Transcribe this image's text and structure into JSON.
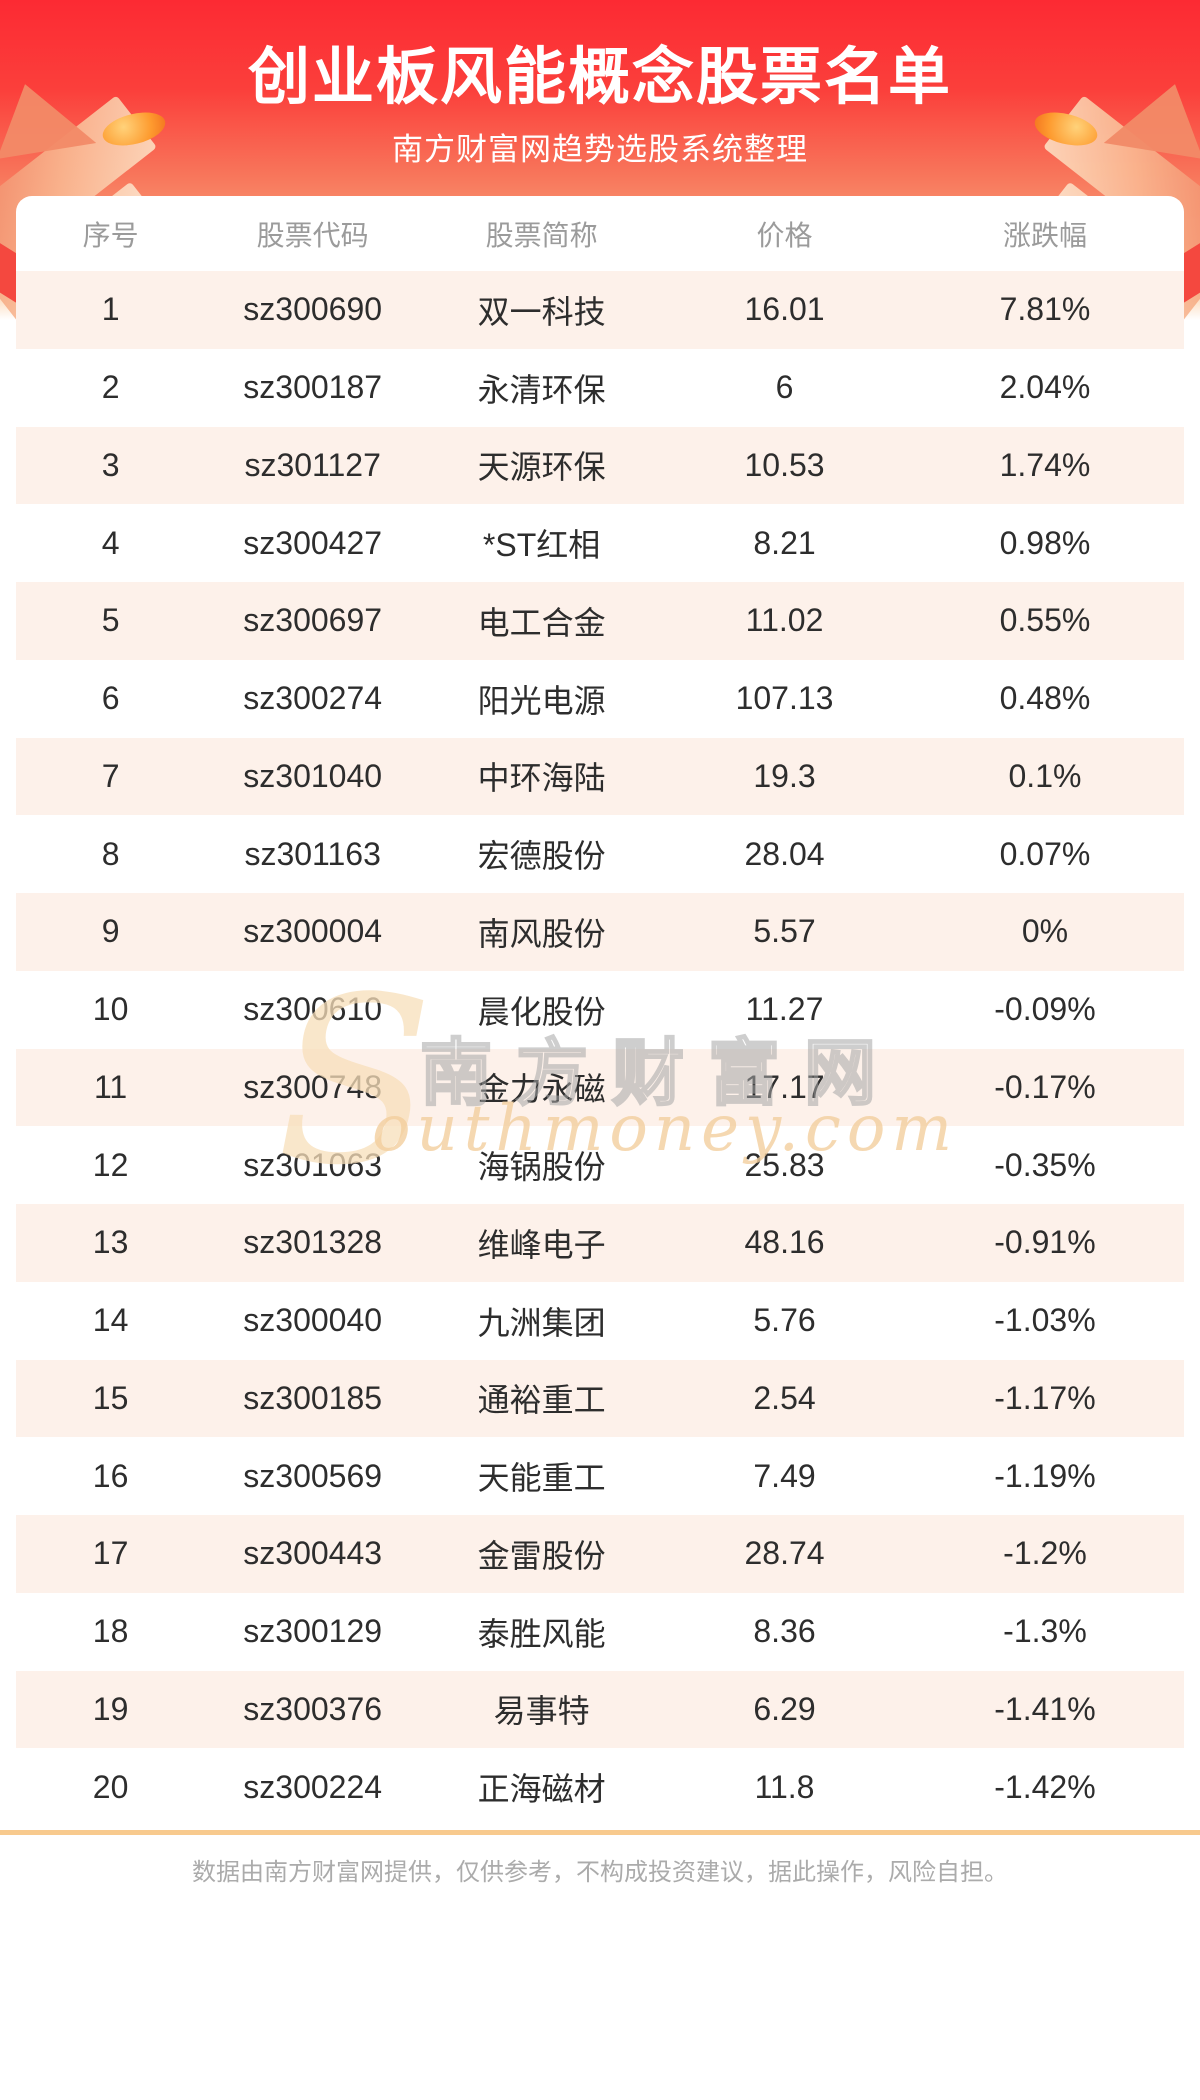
{
  "header": {
    "title": "创业板风能概念股票名单",
    "subtitle": "南方财富网趋势选股系统整理"
  },
  "chart_data": {
    "type": "table",
    "title": "创业板风能概念股票名单",
    "subtitle": "南方财富网趋势选股系统整理",
    "columns": [
      "序号",
      "股票代码",
      "股票简称",
      "价格",
      "涨跌幅"
    ],
    "rows": [
      [
        "1",
        "sz300690",
        "双一科技",
        "16.01",
        "7.81%"
      ],
      [
        "2",
        "sz300187",
        "永清环保",
        "6",
        "2.04%"
      ],
      [
        "3",
        "sz301127",
        "天源环保",
        "10.53",
        "1.74%"
      ],
      [
        "4",
        "sz300427",
        "*ST红相",
        "8.21",
        "0.98%"
      ],
      [
        "5",
        "sz300697",
        "电工合金",
        "11.02",
        "0.55%"
      ],
      [
        "6",
        "sz300274",
        "阳光电源",
        "107.13",
        "0.48%"
      ],
      [
        "7",
        "sz301040",
        "中环海陆",
        "19.3",
        "0.1%"
      ],
      [
        "8",
        "sz301163",
        "宏德股份",
        "28.04",
        "0.07%"
      ],
      [
        "9",
        "sz300004",
        "南风股份",
        "5.57",
        "0%"
      ],
      [
        "10",
        "sz300610",
        "晨化股份",
        "11.27",
        "-0.09%"
      ],
      [
        "11",
        "sz300748",
        "金力永磁",
        "17.17",
        "-0.17%"
      ],
      [
        "12",
        "sz301063",
        "海锅股份",
        "25.83",
        "-0.35%"
      ],
      [
        "13",
        "sz301328",
        "维峰电子",
        "48.16",
        "-0.91%"
      ],
      [
        "14",
        "sz300040",
        "九洲集团",
        "5.76",
        "-1.03%"
      ],
      [
        "15",
        "sz300185",
        "通裕重工",
        "2.54",
        "-1.17%"
      ],
      [
        "16",
        "sz300569",
        "天能重工",
        "7.49",
        "-1.19%"
      ],
      [
        "17",
        "sz300443",
        "金雷股份",
        "28.74",
        "-1.2%"
      ],
      [
        "18",
        "sz300129",
        "泰胜风能",
        "8.36",
        "-1.3%"
      ],
      [
        "19",
        "sz300376",
        "易事特",
        "6.29",
        "-1.41%"
      ],
      [
        "20",
        "sz300224",
        "正海磁材",
        "11.8",
        "-1.42%"
      ]
    ]
  },
  "watermark": {
    "glyph": "S",
    "cn": "南方财富网",
    "en": "outhmoney.com"
  },
  "footer": {
    "disclaimer": "数据由南方财富网提供，仅供参考，不构成投资建议，据此操作，风险自担。"
  },
  "colors": {
    "banner_red_top": "#fc2a33",
    "banner_orange_mid": "#f8765b",
    "banner_peach_bottom": "#fcd6b4",
    "row_stripe": "#fdf1ea",
    "header_text": "#9b9b9b",
    "cell_text": "#2d2d2d",
    "divider": "#f8ca8e",
    "footer_text": "#ababab",
    "watermark_gold": "#f3cf9e",
    "nugget_orange": "#fe9b2f"
  }
}
